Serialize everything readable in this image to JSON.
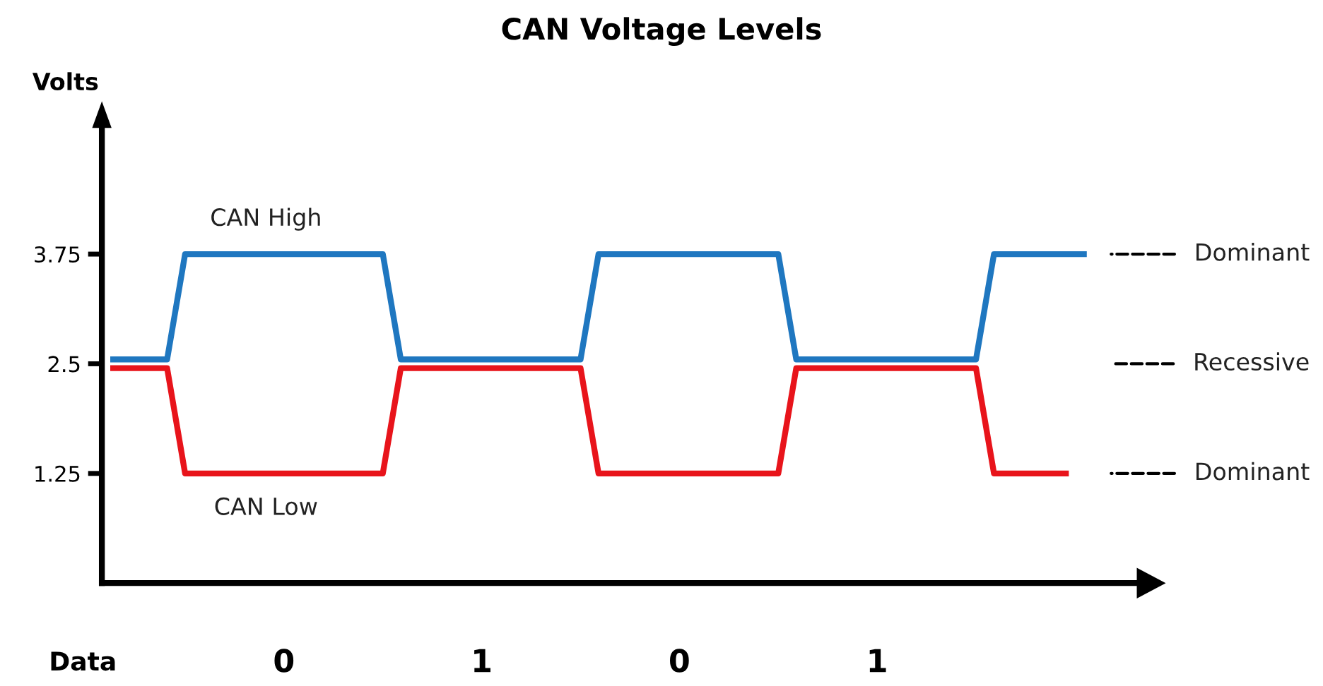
{
  "chart_data": {
    "type": "line",
    "title": "CAN Voltage Levels",
    "ylabel": "Volts",
    "categories": [
      null,
      null,
      null,
      null,
      null,
      null,
      null,
      null,
      null,
      null,
      null,
      null,
      null,
      null,
      null,
      null,
      null,
      null,
      null,
      null,
      null,
      null,
      null,
      null,
      null,
      null,
      null,
      null,
      null,
      null,
      null,
      null,
      null,
      null,
      null,
      null,
      null,
      null,
      null,
      null,
      null,
      null,
      null,
      null,
      null,
      null,
      null,
      null,
      null,
      null,
      null,
      null,
      null,
      null,
      null
    ],
    "series": [
      {
        "name": "CAN High",
        "color": "#1f77c0",
        "values": [
          2.55,
          2.55,
          2.55,
          2.55,
          3.75,
          3.75,
          3.75,
          3.75,
          3.75,
          3.75,
          3.75,
          3.75,
          3.75,
          3.75,
          3.75,
          3.75,
          2.55,
          2.55,
          2.55,
          2.55,
          2.55,
          2.55,
          2.55,
          2.55,
          2.55,
          2.55,
          2.55,
          3.75,
          3.75,
          3.75,
          3.75,
          3.75,
          3.75,
          3.75,
          3.75,
          3.75,
          3.75,
          3.75,
          2.55,
          2.55,
          2.55,
          2.55,
          2.55,
          2.55,
          2.55,
          2.55,
          2.55,
          2.55,
          2.55,
          3.75,
          3.75,
          3.75,
          3.75,
          3.75,
          3.75
        ]
      },
      {
        "name": "CAN Low",
        "color": "#e8141b",
        "values": [
          2.45,
          2.45,
          2.45,
          2.45,
          1.25,
          1.25,
          1.25,
          1.25,
          1.25,
          1.25,
          1.25,
          1.25,
          1.25,
          1.25,
          1.25,
          1.25,
          2.45,
          2.45,
          2.45,
          2.45,
          2.45,
          2.45,
          2.45,
          2.45,
          2.45,
          2.45,
          2.45,
          1.25,
          1.25,
          1.25,
          1.25,
          1.25,
          1.25,
          1.25,
          1.25,
          1.25,
          1.25,
          1.25,
          2.45,
          2.45,
          2.45,
          2.45,
          2.45,
          2.45,
          2.45,
          2.45,
          2.45,
          2.45,
          2.45,
          1.25,
          1.25,
          1.25,
          1.25,
          1.25,
          null
        ]
      }
    ],
    "ylim": [
      0,
      5.2
    ],
    "yticks": [
      1.25,
      2.5,
      3.75
    ],
    "grid": false,
    "legend": false,
    "marker": "none",
    "line_style": "solid",
    "annotations": [
      "Data",
      "0",
      "1",
      "0",
      "1",
      "Dominant",
      "Recessive",
      "Dominant"
    ]
  }
}
